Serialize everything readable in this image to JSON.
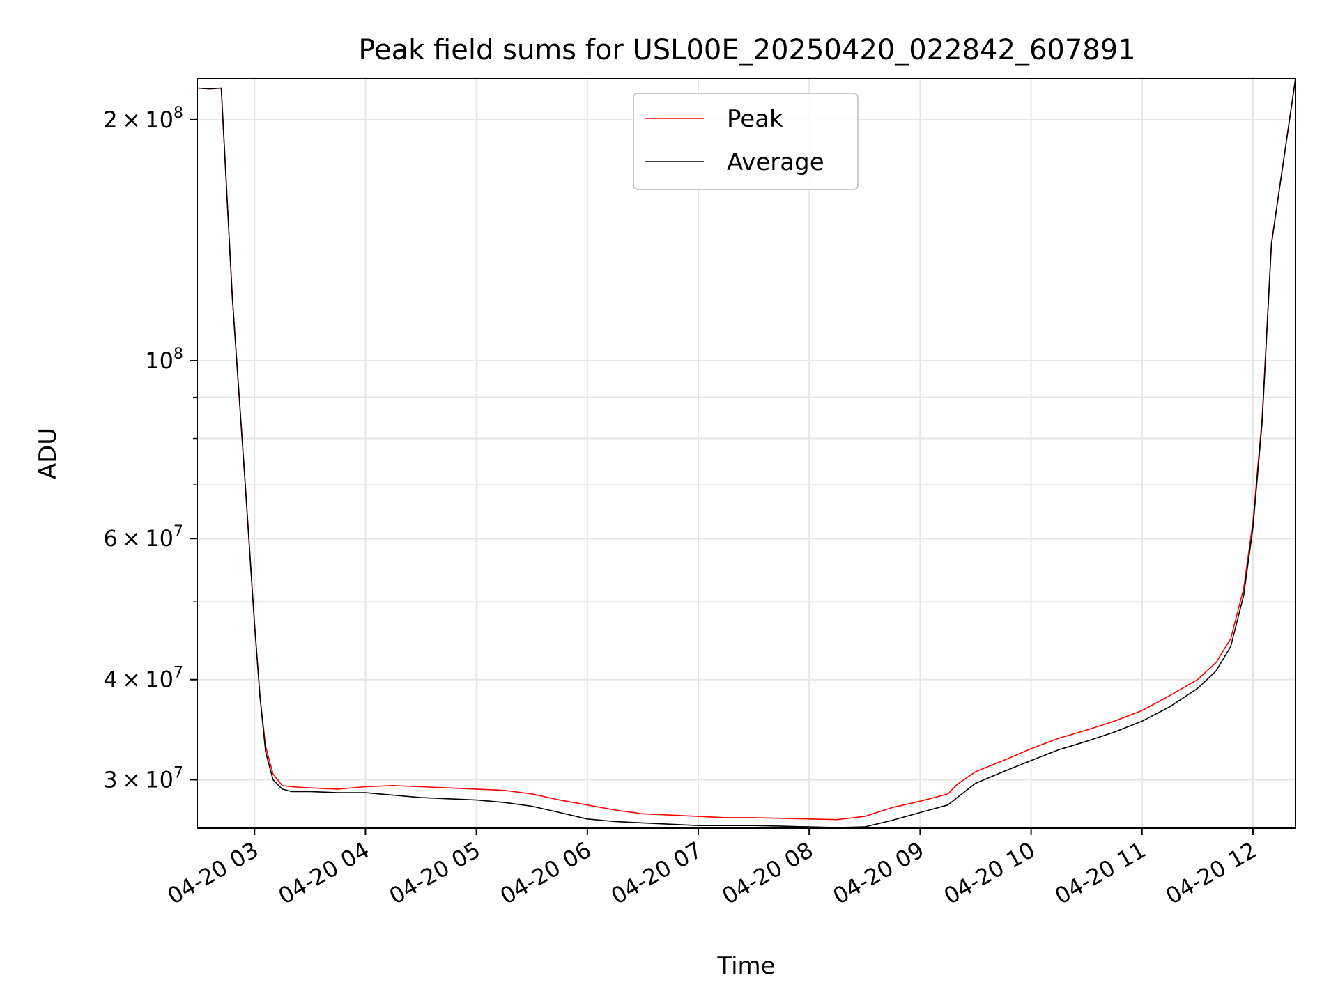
{
  "chart_data": {
    "type": "line",
    "title": "Peak field sums for USL00E_20250420_022842_607891",
    "xlabel": "Time",
    "ylabel": "ADU",
    "y_scale": "log",
    "grid": true,
    "legend_position": "top-center",
    "xlim": [
      "2025-04-20 02:29",
      "2025-04-20 12:23"
    ],
    "ylim": [
      26100000,
      225000000
    ],
    "x_ticks": [
      "04-20 03",
      "04-20 04",
      "04-20 05",
      "04-20 06",
      "04-20 07",
      "04-20 08",
      "04-20 09",
      "04-20 10",
      "04-20 11",
      "04-20 12"
    ],
    "y_ticks": [
      {
        "value": 30000000,
        "coef": "3",
        "exp": "7"
      },
      {
        "value": 40000000,
        "coef": "4",
        "exp": "7"
      },
      {
        "value": 60000000,
        "coef": "6",
        "exp": "7"
      },
      {
        "value": 100000000,
        "coef": "",
        "exp": "8"
      },
      {
        "value": 200000000,
        "coef": "2",
        "exp": "8"
      }
    ],
    "y_minor_ticks": [
      50000000,
      70000000,
      80000000,
      90000000
    ],
    "series": [
      {
        "name": "Peak",
        "color": "#ff0000",
        "x": [
          "2025-04-20 02:29",
          "2025-04-20 02:36",
          "2025-04-20 02:42",
          "2025-04-20 02:48",
          "2025-04-20 02:55",
          "2025-04-20 03:00",
          "2025-04-20 03:03",
          "2025-04-20 03:06",
          "2025-04-20 03:10",
          "2025-04-20 03:15",
          "2025-04-20 03:20",
          "2025-04-20 03:30",
          "2025-04-20 03:45",
          "2025-04-20 04:00",
          "2025-04-20 04:15",
          "2025-04-20 04:30",
          "2025-04-20 04:45",
          "2025-04-20 05:00",
          "2025-04-20 05:15",
          "2025-04-20 05:30",
          "2025-04-20 05:45",
          "2025-04-20 06:00",
          "2025-04-20 06:15",
          "2025-04-20 06:30",
          "2025-04-20 06:45",
          "2025-04-20 07:00",
          "2025-04-20 07:15",
          "2025-04-20 07:30",
          "2025-04-20 07:45",
          "2025-04-20 08:00",
          "2025-04-20 08:15",
          "2025-04-20 08:30",
          "2025-04-20 08:45",
          "2025-04-20 09:00",
          "2025-04-20 09:15",
          "2025-04-20 09:20",
          "2025-04-20 09:30",
          "2025-04-20 09:45",
          "2025-04-20 10:00",
          "2025-04-20 10:15",
          "2025-04-20 10:30",
          "2025-04-20 10:45",
          "2025-04-20 11:00",
          "2025-04-20 11:15",
          "2025-04-20 11:30",
          "2025-04-20 11:40",
          "2025-04-20 11:48",
          "2025-04-20 11:55",
          "2025-04-20 12:00",
          "2025-04-20 12:05",
          "2025-04-20 12:10",
          "2025-04-20 12:23"
        ],
        "y": [
          219000000,
          218500000,
          219000000,
          120000000,
          70000000,
          47000000,
          38000000,
          33000000,
          30500000,
          29500000,
          29400000,
          29300000,
          29200000,
          29400000,
          29500000,
          29400000,
          29300000,
          29200000,
          29100000,
          28800000,
          28300000,
          27900000,
          27500000,
          27200000,
          27100000,
          27000000,
          26900000,
          26900000,
          26850000,
          26800000,
          26750000,
          27000000,
          27700000,
          28200000,
          28800000,
          29600000,
          30700000,
          31700000,
          32800000,
          33800000,
          34600000,
          35500000,
          36600000,
          38200000,
          40000000,
          42000000,
          45000000,
          52000000,
          63000000,
          85000000,
          140000000,
          225000000
        ]
      },
      {
        "name": "Average",
        "color": "#000000",
        "x": [
          "2025-04-20 02:29",
          "2025-04-20 02:36",
          "2025-04-20 02:42",
          "2025-04-20 02:48",
          "2025-04-20 02:55",
          "2025-04-20 03:00",
          "2025-04-20 03:03",
          "2025-04-20 03:06",
          "2025-04-20 03:10",
          "2025-04-20 03:15",
          "2025-04-20 03:20",
          "2025-04-20 03:30",
          "2025-04-20 03:45",
          "2025-04-20 04:00",
          "2025-04-20 04:15",
          "2025-04-20 04:30",
          "2025-04-20 04:45",
          "2025-04-20 05:00",
          "2025-04-20 05:15",
          "2025-04-20 05:30",
          "2025-04-20 05:45",
          "2025-04-20 06:00",
          "2025-04-20 06:15",
          "2025-04-20 06:30",
          "2025-04-20 06:45",
          "2025-04-20 07:00",
          "2025-04-20 07:15",
          "2025-04-20 07:30",
          "2025-04-20 07:45",
          "2025-04-20 08:00",
          "2025-04-20 08:15",
          "2025-04-20 08:30",
          "2025-04-20 08:45",
          "2025-04-20 09:00",
          "2025-04-20 09:15",
          "2025-04-20 09:20",
          "2025-04-20 09:30",
          "2025-04-20 09:45",
          "2025-04-20 10:00",
          "2025-04-20 10:15",
          "2025-04-20 10:30",
          "2025-04-20 10:45",
          "2025-04-20 11:00",
          "2025-04-20 11:15",
          "2025-04-20 11:30",
          "2025-04-20 11:40",
          "2025-04-20 11:48",
          "2025-04-20 11:55",
          "2025-04-20 12:00",
          "2025-04-20 12:05",
          "2025-04-20 12:10",
          "2025-04-20 12:23"
        ],
        "y": [
          219000000,
          218500000,
          219000000,
          120000000,
          70000000,
          47000000,
          38000000,
          32500000,
          30000000,
          29200000,
          29000000,
          29000000,
          28900000,
          28900000,
          28700000,
          28500000,
          28400000,
          28300000,
          28100000,
          27800000,
          27300000,
          26800000,
          26600000,
          26500000,
          26400000,
          26300000,
          26300000,
          26300000,
          26250000,
          26200000,
          26150000,
          26200000,
          26700000,
          27300000,
          27900000,
          28500000,
          29700000,
          30700000,
          31700000,
          32700000,
          33500000,
          34400000,
          35500000,
          37000000,
          39000000,
          41000000,
          44000000,
          51000000,
          62000000,
          84000000,
          140000000,
          225000000
        ]
      }
    ]
  }
}
